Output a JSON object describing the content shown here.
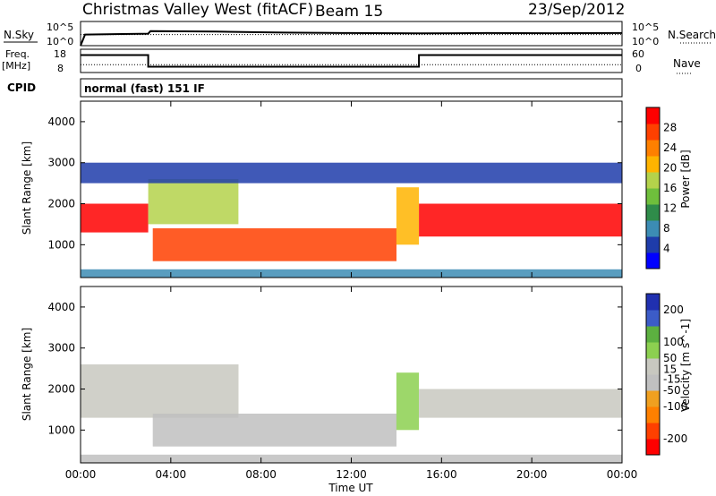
{
  "header": {
    "title": "Christmas Valley West (fitACF)",
    "beam": "Beam 15",
    "date": "23/Sep/2012"
  },
  "labels": {
    "nsky": "N.Sky",
    "nsearch": "N.Search",
    "freq_line1": "Freq.",
    "freq_line2": "[MHz]",
    "nave": "Nave",
    "cpid": "CPID",
    "cpid_value": "normal (fast) 151 IF",
    "noise_tick_top": "10^5",
    "noise_tick_bottom": "10^0",
    "freq_tick_top": "18",
    "freq_tick_bottom": "8",
    "nave_tick_top": "60",
    "nave_tick_bottom": "0"
  },
  "x_axis": {
    "label": "Time UT",
    "ticks": [
      "00:00",
      "04:00",
      "08:00",
      "12:00",
      "16:00",
      "20:00",
      "00:00"
    ]
  },
  "colors": {
    "power_scale": [
      "#0000ff",
      "#1e3caa",
      "#3c8cb4",
      "#2f8c4a",
      "#6fbf3c",
      "#b4d24b",
      "#ffb400",
      "#ff8000",
      "#ff4000",
      "#ff0000"
    ],
    "velocity_scale": [
      "#2030b0",
      "#3c5cc8",
      "#5cb040",
      "#8cd050",
      "#c8c8c0",
      "#c0c0c0",
      "#f0a020",
      "#ff8000",
      "#ff4000",
      "#ff0000"
    ]
  },
  "chart_data": [
    {
      "type": "line",
      "panel": "noise",
      "series": [
        {
          "name": "N.Sky",
          "x": [
            0.0,
            0.2,
            3.0,
            3.1,
            6.0,
            9.0,
            12.0,
            15.0,
            18.0,
            21.0,
            24.0
          ],
          "y": [
            1,
            200,
            300,
            1000,
            800,
            500,
            400,
            350,
            400,
            380,
            400
          ]
        },
        {
          "name": "N.Search",
          "x": [
            0.0,
            24.0
          ],
          "y": [
            200,
            200
          ]
        }
      ],
      "y_ticks": [
        "10^5",
        "10^0"
      ]
    },
    {
      "type": "line",
      "panel": "frequency",
      "ylabel": "Freq. [MHz]",
      "series": [
        {
          "name": "Freq.",
          "x": [
            0.0,
            3.0,
            3.0,
            15.0,
            15.0,
            24.0
          ],
          "y": [
            15.5,
            15.5,
            10.5,
            10.5,
            15.5,
            15.5
          ]
        },
        {
          "name": "Nave",
          "x": [
            0.0,
            24.0
          ],
          "y": [
            20,
            20
          ]
        }
      ],
      "ylim": [
        8,
        18
      ],
      "y_ticks": [
        18,
        8
      ],
      "y2_ticks": [
        60,
        0
      ]
    },
    {
      "type": "heatmap",
      "panel": "power",
      "ylabel": "Slant Range [km]",
      "xlabel": "",
      "xlim": [
        0,
        24
      ],
      "ylim": [
        200,
        4500
      ],
      "y_ticks": [
        1000,
        2000,
        3000,
        4000
      ],
      "colorbar": {
        "label": "Power [dB]",
        "ticks": [
          4,
          8,
          12,
          16,
          20,
          24,
          28
        ],
        "range": [
          0,
          32
        ]
      },
      "regions": [
        {
          "x0": 0.0,
          "x1": 3.0,
          "y0": 1300,
          "y1": 2000,
          "value": 30
        },
        {
          "x0": 3.0,
          "x1": 7.0,
          "y0": 1500,
          "y1": 2600,
          "value": 18
        },
        {
          "x0": 3.2,
          "x1": 14.0,
          "y0": 600,
          "y1": 1400,
          "value": 26
        },
        {
          "x0": 14.0,
          "x1": 15.0,
          "y0": 1000,
          "y1": 2400,
          "value": 22
        },
        {
          "x0": 15.0,
          "x1": 24.0,
          "y0": 1200,
          "y1": 2000,
          "value": 30
        },
        {
          "x0": 0.0,
          "x1": 24.0,
          "y0": 2500,
          "y1": 3000,
          "value": 6
        },
        {
          "x0": 0.0,
          "x1": 24.0,
          "y0": 200,
          "y1": 400,
          "value": 8
        }
      ]
    },
    {
      "type": "heatmap",
      "panel": "velocity",
      "ylabel": "Slant Range [km]",
      "xlabel": "Time UT",
      "xlim": [
        0,
        24
      ],
      "ylim": [
        200,
        4500
      ],
      "y_ticks": [
        1000,
        2000,
        3000,
        4000
      ],
      "colorbar": {
        "label": "Velocity [m s^-1]",
        "ticks": [
          200,
          100,
          50,
          15,
          -15,
          -50,
          -100,
          -200
        ],
        "range": [
          -250,
          250
        ]
      },
      "regions": [
        {
          "x0": 0.0,
          "x1": 7.0,
          "y0": 1300,
          "y1": 2600,
          "value": 0
        },
        {
          "x0": 3.2,
          "x1": 14.0,
          "y0": 600,
          "y1": 1400,
          "value": -50
        },
        {
          "x0": 14.0,
          "x1": 15.0,
          "y0": 1000,
          "y1": 2400,
          "value": 50
        },
        {
          "x0": 15.0,
          "x1": 24.0,
          "y0": 1300,
          "y1": 2000,
          "value": 0
        },
        {
          "x0": 0.0,
          "x1": 24.0,
          "y0": 200,
          "y1": 400,
          "value": -50
        }
      ]
    }
  ]
}
